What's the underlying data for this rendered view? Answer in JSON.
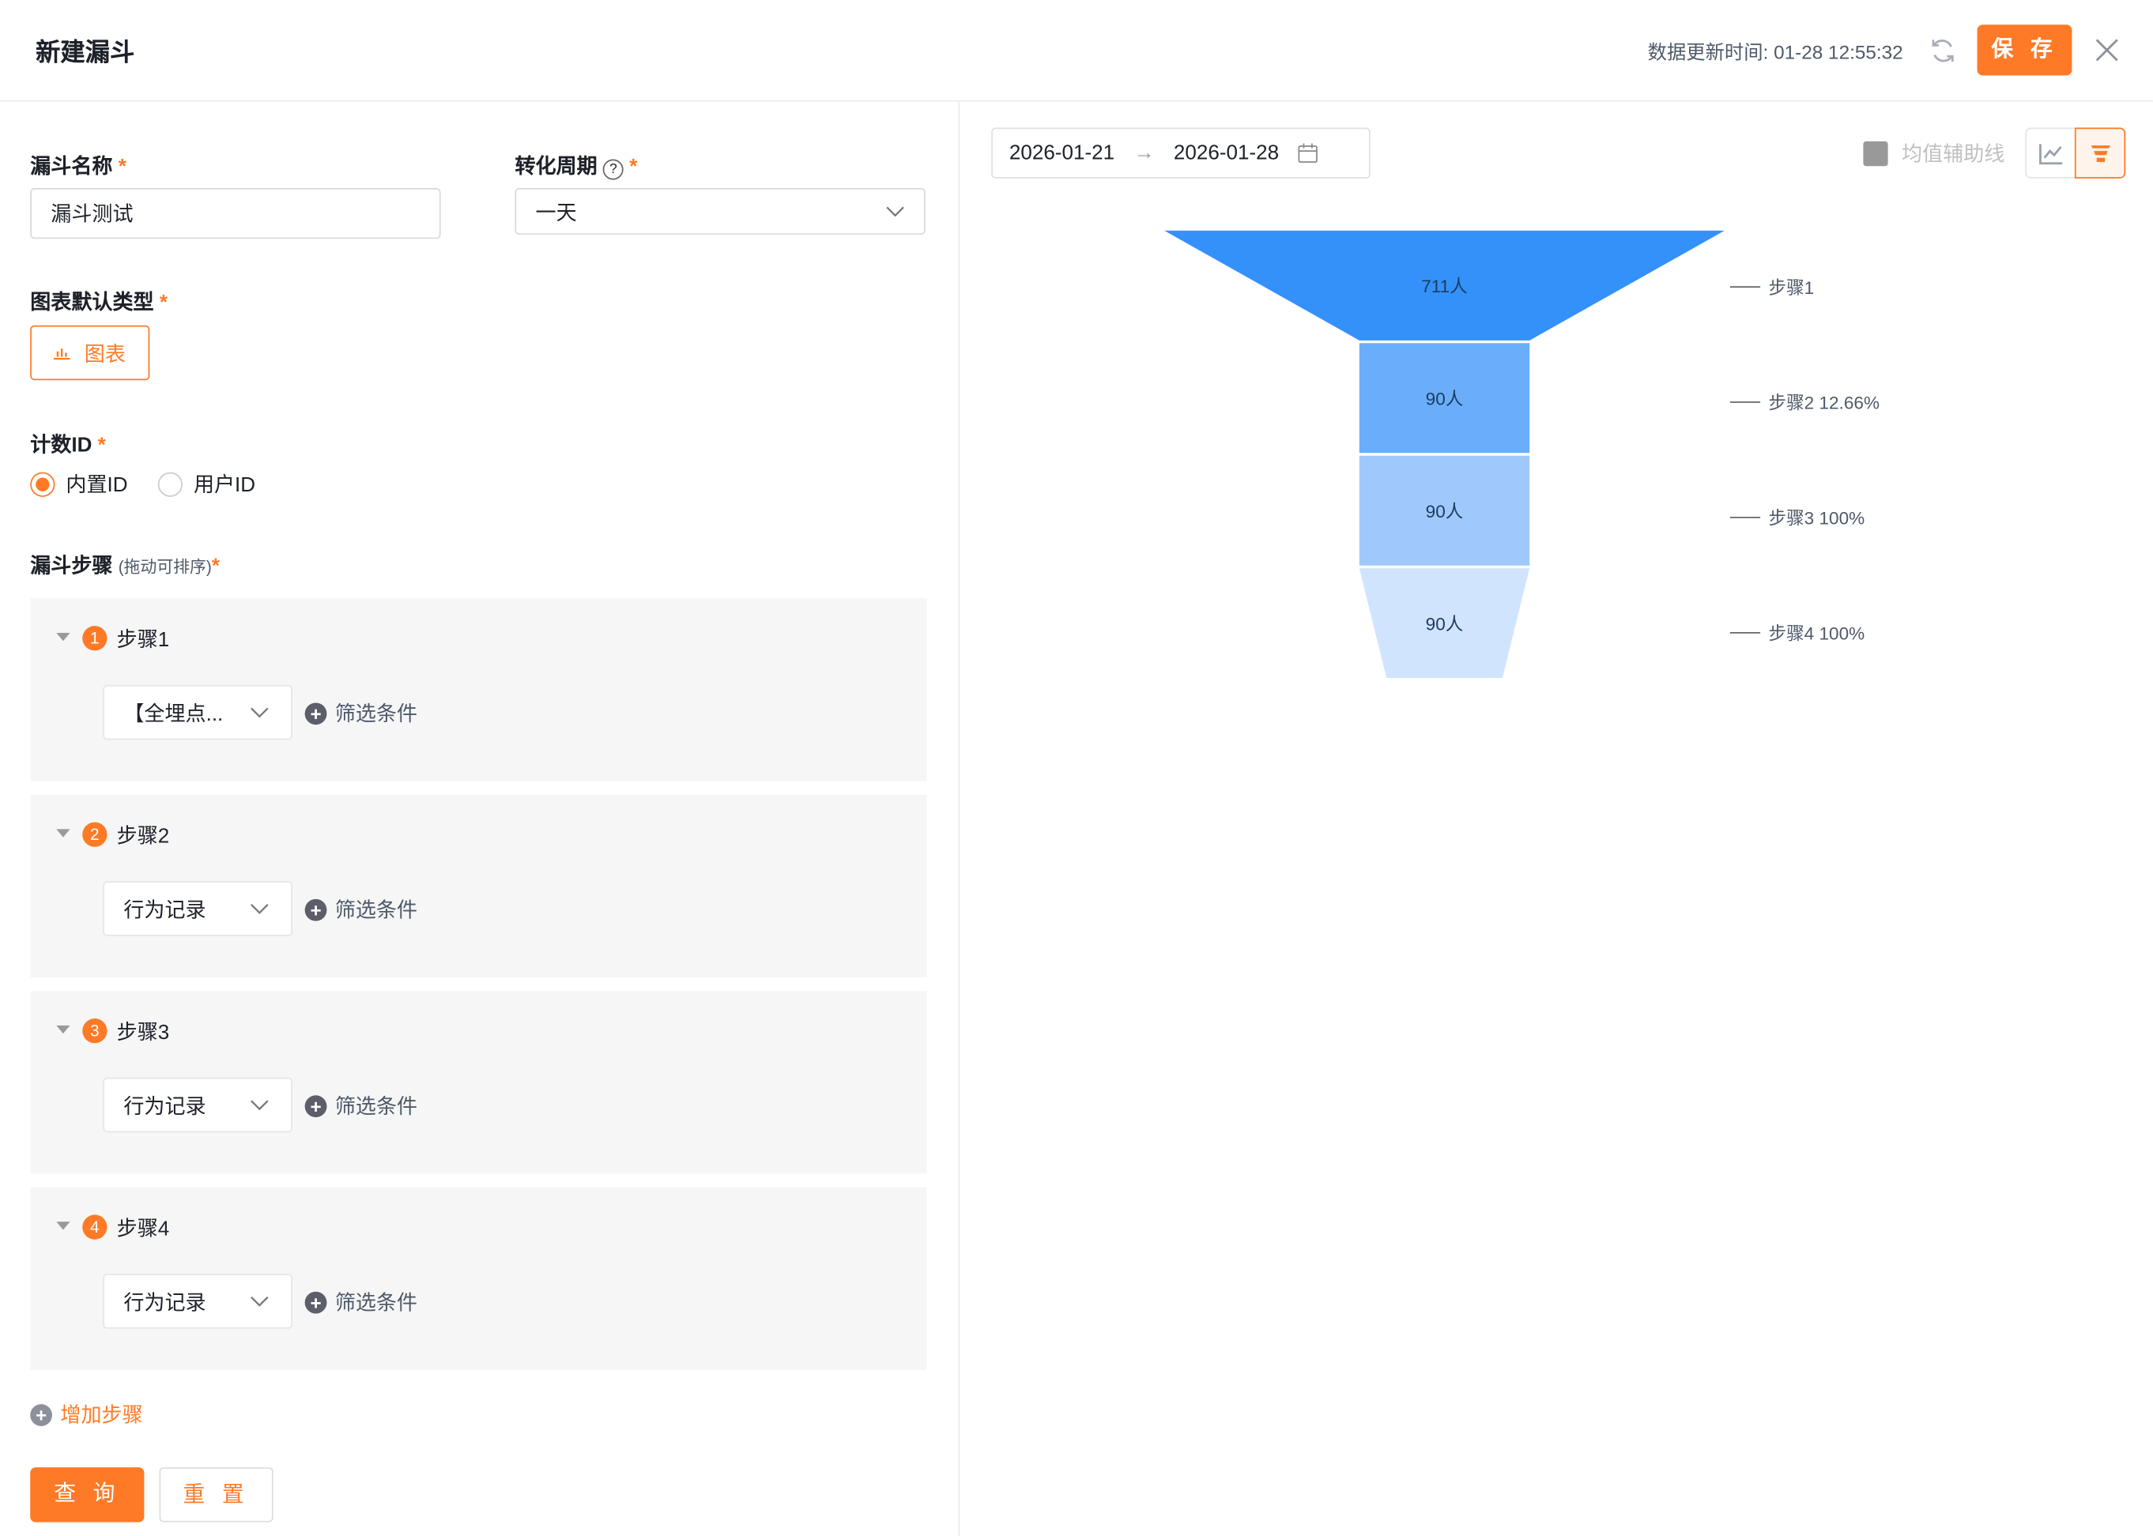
{
  "header": {
    "title": "新建漏斗",
    "update_time": "数据更新时间: 01-28 12:55:32",
    "save_label": "保 存"
  },
  "form": {
    "name_label": "漏斗名称",
    "name_value": "漏斗测试",
    "period_label": "转化周期",
    "period_value": "一天",
    "chart_type_label": "图表默认类型",
    "chart_type_value": "图表",
    "count_id_label": "计数ID",
    "count_id_options": [
      "内置ID",
      "用户ID"
    ],
    "count_id_selected": "内置ID",
    "steps_label": "漏斗步骤",
    "steps_hint": "(拖动可排序)",
    "steps": [
      {
        "num": "1",
        "name": "步骤1",
        "event": "【全埋点...",
        "filter": "筛选条件"
      },
      {
        "num": "2",
        "name": "步骤2",
        "event": "行为记录",
        "filter": "筛选条件"
      },
      {
        "num": "3",
        "name": "步骤3",
        "event": "行为记录",
        "filter": "筛选条件"
      },
      {
        "num": "4",
        "name": "步骤4",
        "event": "行为记录",
        "filter": "筛选条件"
      }
    ],
    "add_step": "增加步骤",
    "query_label": "查 询",
    "reset_label": "重 置"
  },
  "right": {
    "date_start": "2026-01-21",
    "date_end": "2026-01-28",
    "avg_line_label": "均值辅助线",
    "avg_line_checked": false,
    "active_view": "funnel"
  },
  "colors": {
    "accent": "#ff7a26",
    "funnel": [
      "#3491fa",
      "#6aaefa",
      "#9fc9fc",
      "#d0e4fd"
    ]
  },
  "chart_data": {
    "type": "funnel",
    "categories": [
      "步骤1",
      "步骤2",
      "步骤3",
      "步骤4"
    ],
    "values": [
      711,
      90,
      90,
      90
    ],
    "value_labels": [
      "711人",
      "90人",
      "90人",
      "90人"
    ],
    "legend_labels": [
      "步骤1",
      "步骤2 12.66%",
      "步骤3 100%",
      "步骤4 100%"
    ]
  }
}
